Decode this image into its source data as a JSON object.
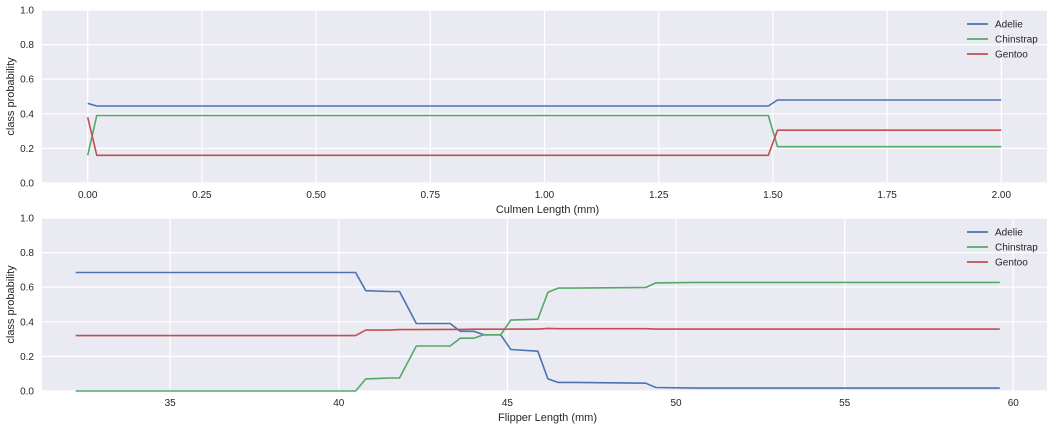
{
  "colors": {
    "background": "#ffffff",
    "axes_face": "#eaeaf2",
    "grid": "#ffffff",
    "text": "#262626",
    "Adelie": "#4c72b0",
    "Chinstrap": "#55a868",
    "Gentoo": "#c44e52"
  },
  "chart_data": [
    {
      "type": "line",
      "title": "",
      "xlabel": "Culmen Length (mm)",
      "ylabel": "class probability",
      "xlim": [
        -0.1,
        2.1
      ],
      "ylim": [
        0.0,
        1.0
      ],
      "xticks": [
        0.0,
        0.25,
        0.5,
        0.75,
        1.0,
        1.25,
        1.5,
        1.75,
        2.0
      ],
      "xtick_labels": [
        "0.00",
        "0.25",
        "0.50",
        "0.75",
        "1.00",
        "1.25",
        "1.50",
        "1.75",
        "2.00"
      ],
      "yticks": [
        0.0,
        0.2,
        0.4,
        0.6,
        0.8,
        1.0
      ],
      "ytick_labels": [
        "0.0",
        "0.2",
        "0.4",
        "0.6",
        "0.8",
        "1.0"
      ],
      "grid": true,
      "legend_position": "upper right",
      "x": [
        0.0,
        0.02,
        1.49,
        1.51,
        2.0
      ],
      "series": [
        {
          "name": "Adelie",
          "values": [
            0.46,
            0.445,
            0.445,
            0.48,
            0.48
          ]
        },
        {
          "name": "Chinstrap",
          "values": [
            0.16,
            0.39,
            0.39,
            0.21,
            0.21
          ]
        },
        {
          "name": "Gentoo",
          "values": [
            0.38,
            0.16,
            0.16,
            0.305,
            0.305
          ]
        }
      ]
    },
    {
      "type": "line",
      "title": "",
      "xlabel": "Flipper Length (mm)",
      "ylabel": "class probability",
      "xlim": [
        31.2,
        61.0
      ],
      "ylim": [
        0.0,
        1.0
      ],
      "xticks": [
        35,
        40,
        45,
        50,
        55,
        60
      ],
      "xtick_labels": [
        "35",
        "40",
        "45",
        "50",
        "55",
        "60"
      ],
      "yticks": [
        0.0,
        0.2,
        0.4,
        0.6,
        0.8,
        1.0
      ],
      "ytick_labels": [
        "0.0",
        "0.2",
        "0.4",
        "0.6",
        "0.8",
        "1.0"
      ],
      "grid": true,
      "legend_position": "upper right",
      "x": [
        32.2,
        40.5,
        40.8,
        41.5,
        41.8,
        42.3,
        43.3,
        43.6,
        44.0,
        44.3,
        44.8,
        45.1,
        45.9,
        46.2,
        46.5,
        47.0,
        49.1,
        49.4,
        50.6,
        59.6
      ],
      "series": [
        {
          "name": "Adelie",
          "values": [
            0.685,
            0.685,
            0.58,
            0.575,
            0.575,
            0.39,
            0.39,
            0.345,
            0.345,
            0.325,
            0.325,
            0.24,
            0.23,
            0.07,
            0.05,
            0.05,
            0.045,
            0.02,
            0.017,
            0.017
          ]
        },
        {
          "name": "Chinstrap",
          "values": [
            0.0,
            0.0,
            0.07,
            0.075,
            0.075,
            0.26,
            0.26,
            0.305,
            0.305,
            0.325,
            0.325,
            0.41,
            0.415,
            0.57,
            0.595,
            0.595,
            0.598,
            0.625,
            0.628,
            0.628
          ]
        },
        {
          "name": "Gentoo",
          "values": [
            0.32,
            0.32,
            0.352,
            0.352,
            0.355,
            0.355,
            0.356,
            0.356,
            0.357,
            0.357,
            0.357,
            0.358,
            0.358,
            0.362,
            0.36,
            0.36,
            0.36,
            0.358,
            0.358,
            0.358
          ]
        }
      ]
    }
  ]
}
